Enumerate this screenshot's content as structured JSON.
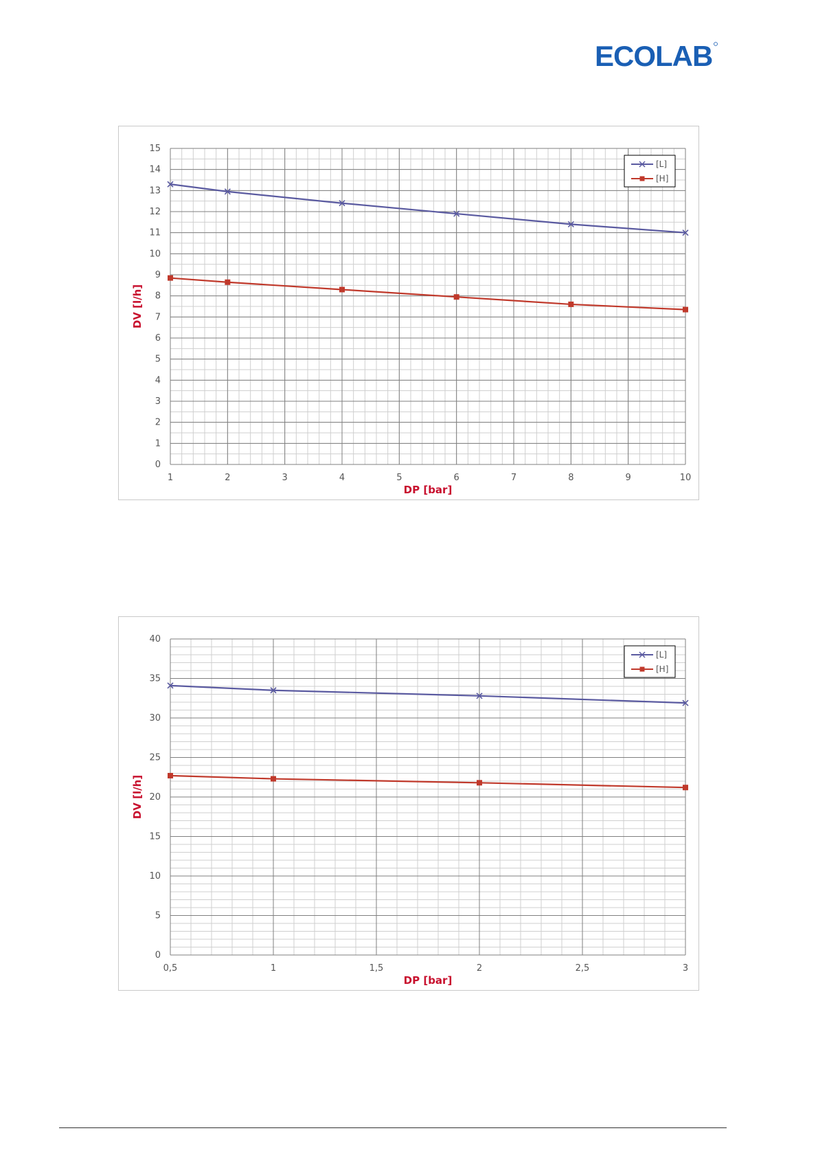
{
  "logo": {
    "text": "ECOLAB",
    "color": "#1a5fb4"
  },
  "colors": {
    "series_L": "#5a5aa0",
    "series_H": "#c0392b",
    "axis_title": "#c8102e"
  },
  "chart_data": [
    {
      "type": "line",
      "xlabel": "DP [bar]",
      "ylabel": "DV [l/h]",
      "xlim": [
        1,
        10
      ],
      "ylim": [
        0,
        15
      ],
      "x_ticks": [
        1,
        2,
        3,
        4,
        5,
        6,
        7,
        8,
        9,
        10
      ],
      "x_tick_labels": [
        "1",
        "2",
        "3",
        "4",
        "5",
        "6",
        "7",
        "8",
        "9",
        "10"
      ],
      "y_ticks": [
        0,
        1,
        2,
        3,
        4,
        5,
        6,
        7,
        8,
        9,
        10,
        11,
        12,
        13,
        14,
        15
      ],
      "y_tick_labels": [
        "0",
        "1",
        "2",
        "3",
        "4",
        "5",
        "6",
        "7",
        "8",
        "9",
        "10",
        "11",
        "12",
        "13",
        "14",
        "15"
      ],
      "minor_x_step": 0.2,
      "minor_y_step": 0.5,
      "grid": true,
      "legend_position": "top-right",
      "series": [
        {
          "name": "[L]",
          "marker": "x",
          "color": "#5a5aa0",
          "x": [
            1,
            2,
            4,
            6,
            8,
            10
          ],
          "y": [
            13.3,
            12.95,
            12.4,
            11.9,
            11.4,
            11.0
          ]
        },
        {
          "name": "[H]",
          "marker": "square",
          "color": "#c0392b",
          "x": [
            1,
            2,
            4,
            6,
            8,
            10
          ],
          "y": [
            8.85,
            8.65,
            8.3,
            7.95,
            7.6,
            7.35
          ]
        }
      ]
    },
    {
      "type": "line",
      "xlabel": "DP [bar]",
      "ylabel": "DV [l/h]",
      "xlim": [
        0.5,
        3
      ],
      "ylim": [
        0,
        40
      ],
      "x_ticks": [
        0.5,
        1,
        1.5,
        2,
        2.5,
        3
      ],
      "x_tick_labels": [
        "0,5",
        "1",
        "1,5",
        "2",
        "2,5",
        "3"
      ],
      "y_ticks": [
        0,
        5,
        10,
        15,
        20,
        25,
        30,
        35,
        40
      ],
      "y_tick_labels": [
        "0",
        "5",
        "10",
        "15",
        "20",
        "25",
        "30",
        "35",
        "40"
      ],
      "minor_x_step": 0.1,
      "minor_y_step": 1,
      "grid": true,
      "legend_position": "top-right",
      "series": [
        {
          "name": "[L]",
          "marker": "x",
          "color": "#5a5aa0",
          "x": [
            0.5,
            1,
            2,
            3
          ],
          "y": [
            34.1,
            33.5,
            32.8,
            31.9
          ]
        },
        {
          "name": "[H]",
          "marker": "square",
          "color": "#c0392b",
          "x": [
            0.5,
            1,
            2,
            3
          ],
          "y": [
            22.7,
            22.3,
            21.8,
            21.2
          ]
        }
      ]
    }
  ]
}
